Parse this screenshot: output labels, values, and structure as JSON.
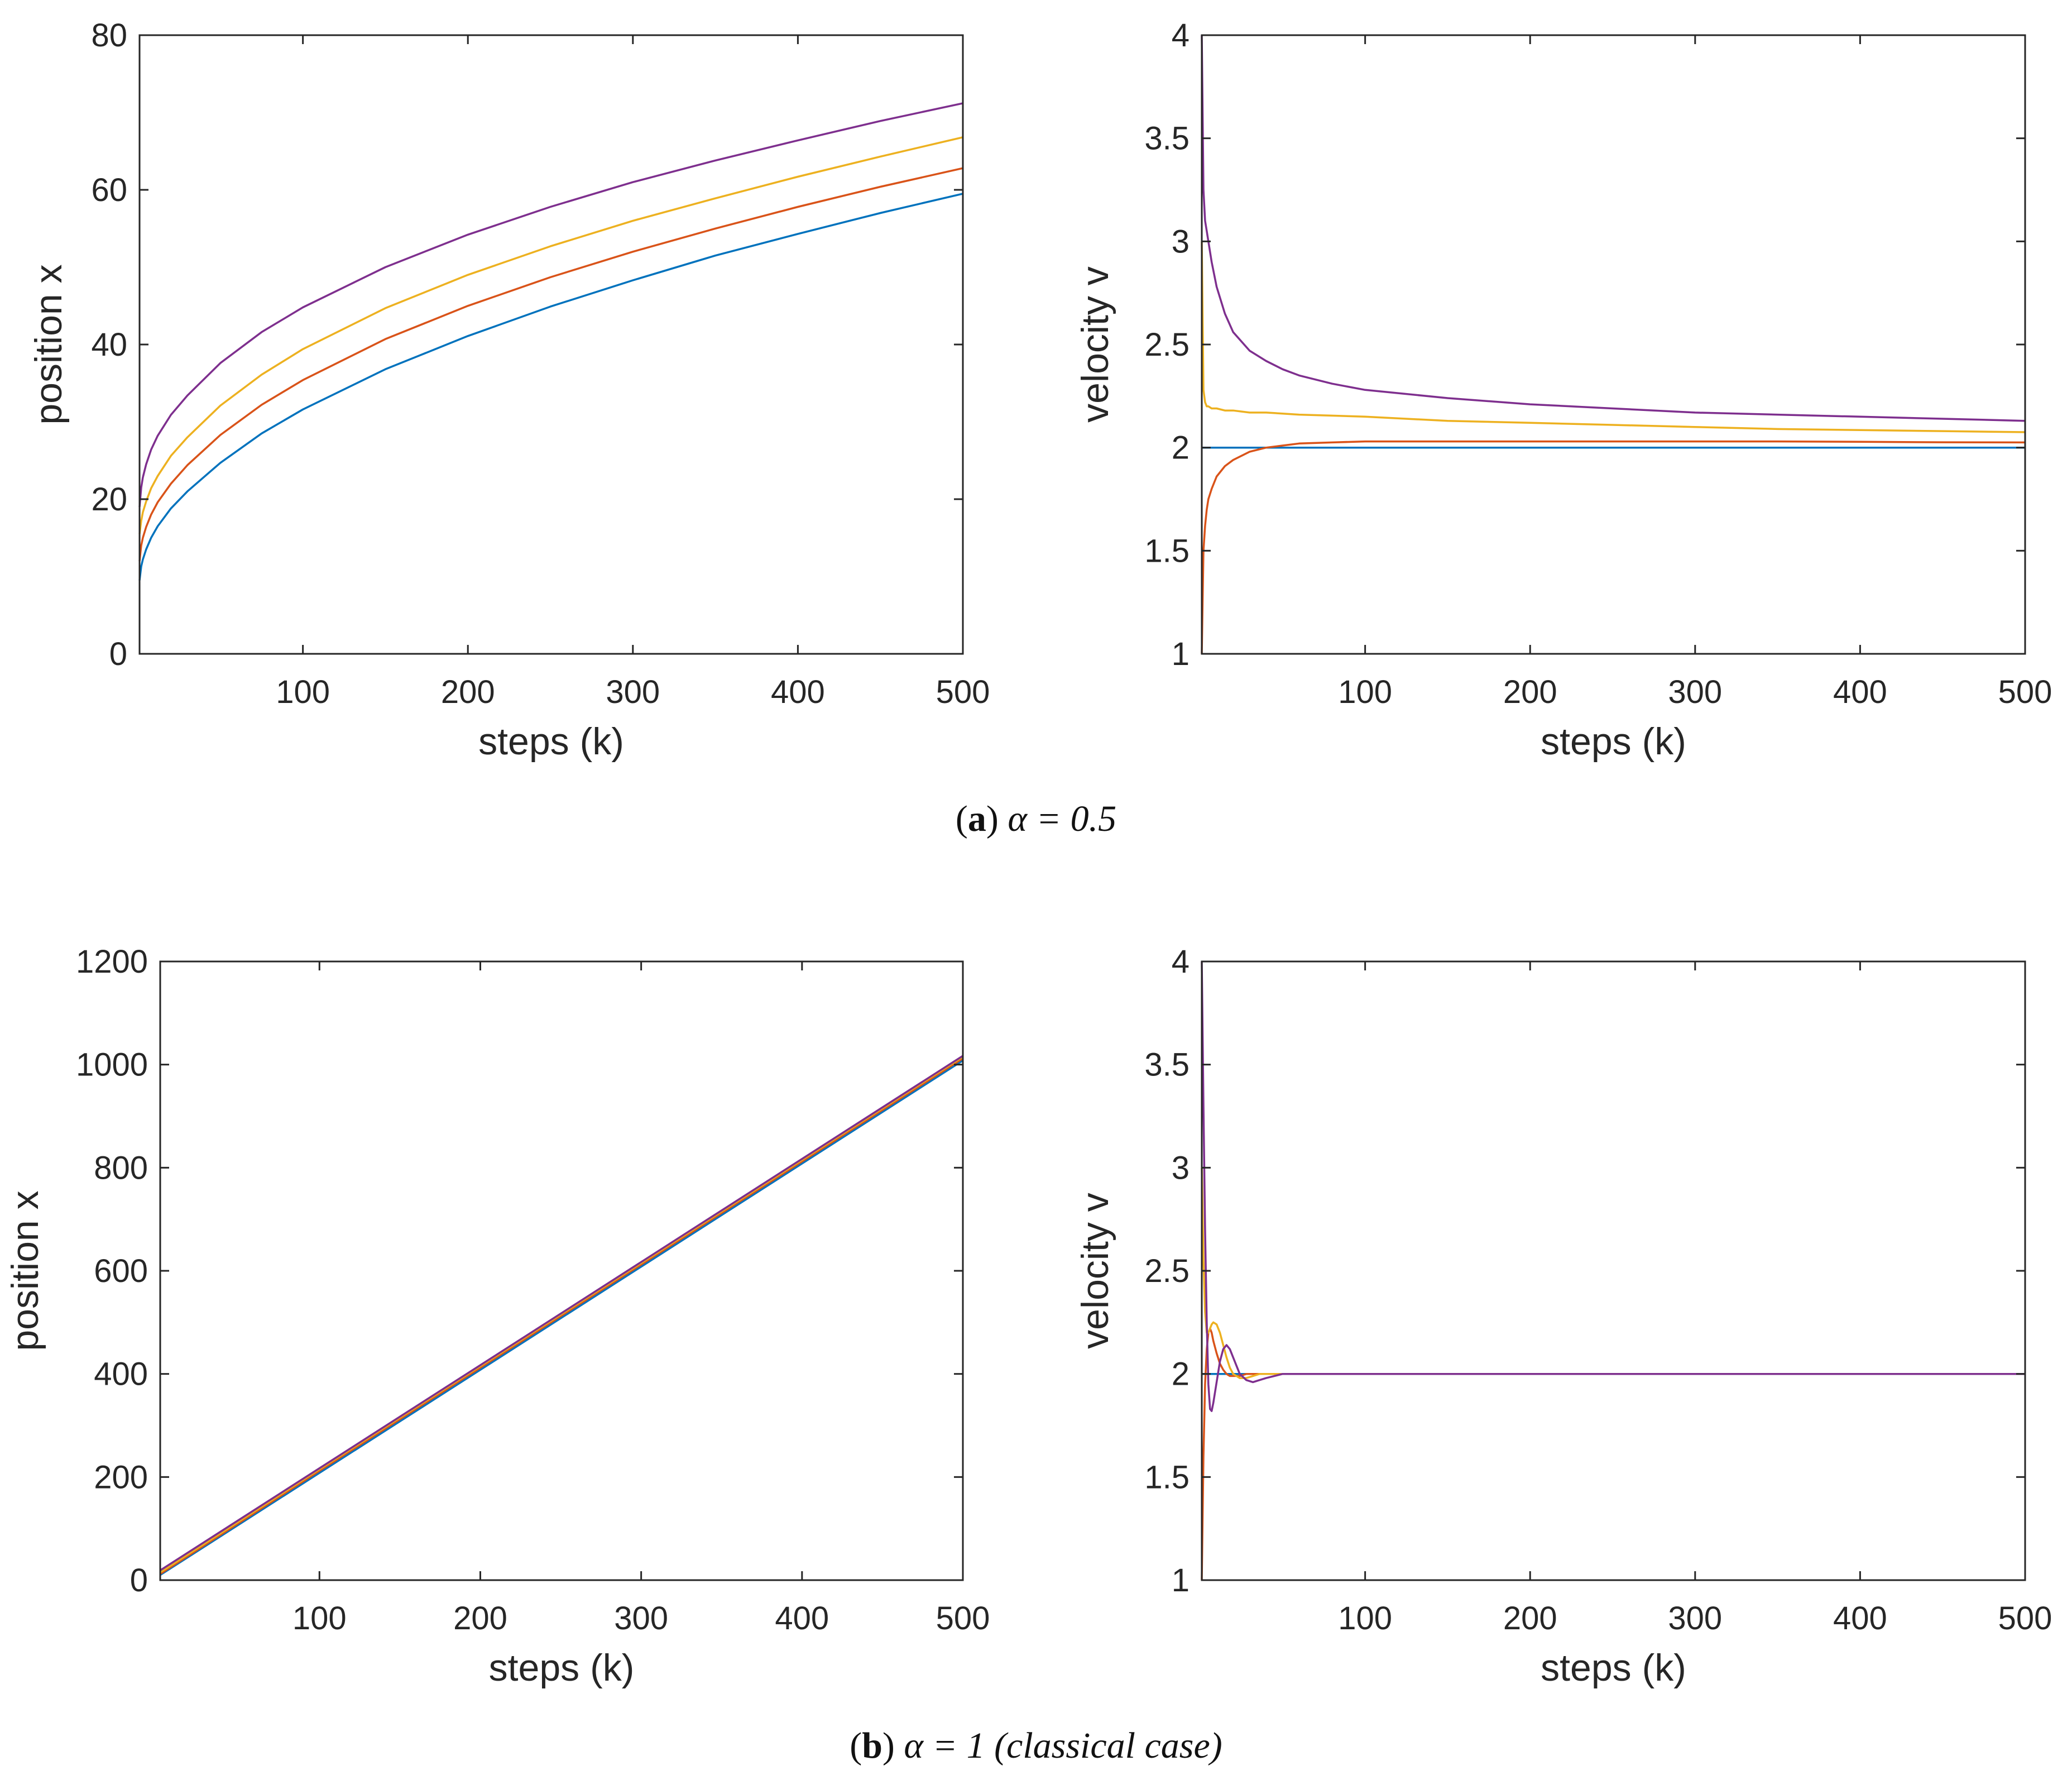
{
  "colors": {
    "blue": "#0072BD",
    "red": "#D95319",
    "yellow": "#EDB120",
    "purple": "#7E2F8E"
  },
  "captions": {
    "a_letter": "a",
    "a_text": "α = 0.5",
    "b_letter": "b",
    "b_text": "α = 1 (classical case)"
  },
  "chart_data": [
    {
      "id": "a-position",
      "type": "line",
      "xlabel": "steps (k)",
      "ylabel": "position x",
      "xlim": [
        1,
        500
      ],
      "ylim": [
        0,
        80
      ],
      "xticks": [
        100,
        200,
        300,
        400,
        500
      ],
      "yticks": [
        0,
        20,
        40,
        60,
        80
      ],
      "x": [
        1,
        2,
        3,
        5,
        8,
        12,
        20,
        30,
        50,
        75,
        100,
        150,
        200,
        250,
        300,
        350,
        400,
        450,
        500
      ],
      "series": [
        {
          "name": "blue",
          "color": "blue",
          "values": [
            9.5,
            11.3,
            12.2,
            13.5,
            15.0,
            16.5,
            18.8,
            21.0,
            24.7,
            28.5,
            31.6,
            36.8,
            41.1,
            44.9,
            48.3,
            51.5,
            54.3,
            57.0,
            59.5
          ]
        },
        {
          "name": "red",
          "color": "red",
          "values": [
            12.0,
            14.0,
            15.0,
            16.4,
            18.0,
            19.6,
            22.0,
            24.4,
            28.3,
            32.2,
            35.4,
            40.7,
            45.0,
            48.7,
            52.0,
            55.0,
            57.8,
            60.4,
            62.8
          ]
        },
        {
          "name": "yellow",
          "color": "yellow",
          "values": [
            15.5,
            17.2,
            18.3,
            19.7,
            21.4,
            23.0,
            25.6,
            28.0,
            32.1,
            36.1,
            39.4,
            44.7,
            49.0,
            52.7,
            56.0,
            58.9,
            61.7,
            64.3,
            66.8
          ]
        },
        {
          "name": "purple",
          "color": "purple",
          "values": [
            19.0,
            21.5,
            22.8,
            24.5,
            26.4,
            28.2,
            30.9,
            33.4,
            37.6,
            41.6,
            44.8,
            50.0,
            54.2,
            57.8,
            61.0,
            63.8,
            66.4,
            68.9,
            71.2
          ]
        }
      ]
    },
    {
      "id": "a-velocity",
      "type": "line",
      "xlabel": "steps (k)",
      "ylabel": "velocity v",
      "xlim": [
        1,
        500
      ],
      "ylim": [
        1,
        4
      ],
      "xticks": [
        100,
        200,
        300,
        400,
        500
      ],
      "yticks": [
        1,
        1.5,
        2,
        2.5,
        3,
        3.5,
        4
      ],
      "yticklabels": [
        "1",
        "1.5",
        "2",
        "2.5",
        "3",
        "3.5",
        "4"
      ],
      "x": [
        1,
        2,
        3,
        4,
        5,
        7,
        10,
        15,
        20,
        30,
        40,
        50,
        60,
        80,
        100,
        150,
        200,
        250,
        300,
        350,
        400,
        450,
        500
      ],
      "series": [
        {
          "name": "blue",
          "color": "blue",
          "values": [
            2.0,
            2.0,
            2.0,
            2.0,
            2.0,
            2.0,
            2.0,
            2.0,
            2.0,
            2.0,
            2.0,
            2.0,
            2.0,
            2.0,
            2.0,
            2.0,
            2.0,
            2.0,
            2.0,
            2.0,
            2.0,
            2.0,
            2.0
          ]
        },
        {
          "name": "red",
          "color": "red",
          "values": [
            1.0,
            1.5,
            1.62,
            1.7,
            1.75,
            1.8,
            1.86,
            1.91,
            1.94,
            1.98,
            2.0,
            2.01,
            2.02,
            2.025,
            2.03,
            2.03,
            2.03,
            2.03,
            2.03,
            2.03,
            2.028,
            2.026,
            2.025
          ]
        },
        {
          "name": "yellow",
          "color": "yellow",
          "values": [
            3.0,
            2.28,
            2.22,
            2.2,
            2.2,
            2.19,
            2.19,
            2.18,
            2.18,
            2.17,
            2.17,
            2.165,
            2.16,
            2.155,
            2.15,
            2.13,
            2.12,
            2.11,
            2.1,
            2.09,
            2.085,
            2.08,
            2.075
          ]
        },
        {
          "name": "purple",
          "color": "purple",
          "values": [
            4.0,
            3.25,
            3.1,
            3.05,
            3.0,
            2.9,
            2.78,
            2.65,
            2.56,
            2.47,
            2.42,
            2.38,
            2.35,
            2.31,
            2.28,
            2.24,
            2.21,
            2.19,
            2.17,
            2.16,
            2.15,
            2.14,
            2.13
          ]
        }
      ]
    },
    {
      "id": "b-position",
      "type": "line",
      "xlabel": "steps (k)",
      "ylabel": "position x",
      "xlim": [
        1,
        500
      ],
      "ylim": [
        0,
        1200
      ],
      "xticks": [
        100,
        200,
        300,
        400,
        500
      ],
      "yticks": [
        0,
        200,
        400,
        600,
        800,
        1000,
        1200
      ],
      "x": [
        1,
        100,
        200,
        300,
        400,
        500
      ],
      "series": [
        {
          "name": "blue",
          "color": "blue",
          "values": [
            10,
            208,
            408,
            608,
            808,
            1008
          ]
        },
        {
          "name": "red",
          "color": "red",
          "values": [
            12,
            212,
            412,
            612,
            812,
            1012
          ]
        },
        {
          "name": "yellow",
          "color": "yellow",
          "values": [
            15,
            215,
            415,
            615,
            815,
            1015
          ]
        },
        {
          "name": "purple",
          "color": "purple",
          "values": [
            19,
            217,
            417,
            617,
            817,
            1017
          ]
        }
      ]
    },
    {
      "id": "b-velocity",
      "type": "line",
      "xlabel": "steps (k)",
      "ylabel": "velocity v",
      "xlim": [
        1,
        500
      ],
      "ylim": [
        1,
        4
      ],
      "xticks": [
        100,
        200,
        300,
        400,
        500
      ],
      "yticks": [
        1,
        1.5,
        2,
        2.5,
        3,
        3.5,
        4
      ],
      "yticklabels": [
        "1",
        "1.5",
        "2",
        "2.5",
        "3",
        "3.5",
        "4"
      ],
      "x": [
        1,
        2,
        3,
        4,
        5,
        6,
        7,
        8,
        10,
        12,
        14,
        16,
        18,
        20,
        24,
        28,
        32,
        36,
        40,
        50,
        60,
        80,
        100,
        200,
        300,
        400,
        500
      ],
      "series": [
        {
          "name": "blue",
          "color": "blue",
          "values": [
            2.0,
            2.0,
            2.0,
            2.0,
            2.0,
            2.0,
            2.0,
            2.0,
            2.0,
            2.0,
            2.0,
            2.0,
            2.0,
            2.0,
            2.0,
            2.0,
            2.0,
            2.0,
            2.0,
            2.0,
            2.0,
            2.0,
            2.0,
            2.0,
            2.0,
            2.0,
            2.0
          ]
        },
        {
          "name": "red",
          "color": "red",
          "values": [
            1.0,
            1.6,
            1.95,
            2.12,
            2.2,
            2.22,
            2.2,
            2.16,
            2.1,
            2.05,
            2.02,
            2.0,
            1.99,
            1.99,
            1.99,
            2.0,
            2.0,
            2.0,
            2.0,
            2.0,
            2.0,
            2.0,
            2.0,
            2.0,
            2.0,
            2.0,
            2.0
          ]
        },
        {
          "name": "yellow",
          "color": "yellow",
          "values": [
            3.0,
            2.55,
            2.3,
            2.2,
            2.2,
            2.22,
            2.24,
            2.25,
            2.24,
            2.2,
            2.14,
            2.08,
            2.03,
            2.0,
            1.98,
            1.98,
            1.99,
            2.0,
            2.0,
            2.0,
            2.0,
            2.0,
            2.0,
            2.0,
            2.0,
            2.0,
            2.0
          ]
        },
        {
          "name": "purple",
          "color": "purple",
          "values": [
            4.0,
            3.3,
            2.7,
            2.25,
            1.95,
            1.83,
            1.82,
            1.86,
            1.96,
            2.06,
            2.12,
            2.14,
            2.12,
            2.08,
            2.0,
            1.97,
            1.96,
            1.97,
            1.98,
            2.0,
            2.0,
            2.0,
            2.0,
            2.0,
            2.0,
            2.0,
            2.0
          ]
        }
      ]
    }
  ]
}
